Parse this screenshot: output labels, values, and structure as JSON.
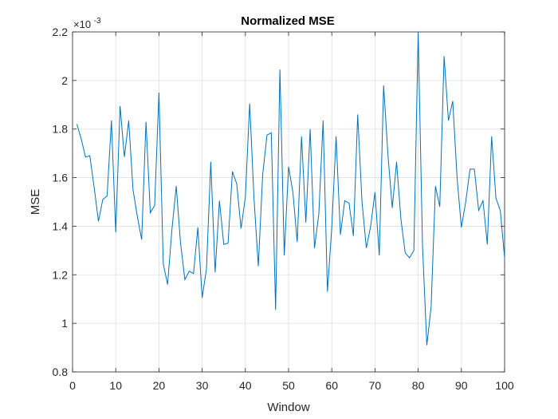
{
  "chart_data": {
    "type": "line",
    "title": "Normalized MSE",
    "xlabel": "Window",
    "ylabel": "MSE",
    "exponent_label": "×10",
    "exponent_power": "-3",
    "xlim": [
      0,
      100
    ],
    "ylim": [
      0.8,
      2.2
    ],
    "xticks": [
      "0",
      "10",
      "20",
      "30",
      "40",
      "50",
      "60",
      "70",
      "80",
      "90",
      "100"
    ],
    "yticks": [
      "0.8",
      "1",
      "1.2",
      "1.4",
      "1.6",
      "1.8",
      "2",
      "2.2"
    ],
    "grid": true,
    "series_color": "#0072BD",
    "x": [
      1,
      2,
      3,
      4,
      5,
      6,
      7,
      8,
      9,
      10,
      11,
      12,
      13,
      14,
      15,
      16,
      17,
      18,
      19,
      20,
      21,
      22,
      23,
      24,
      25,
      26,
      27,
      28,
      29,
      30,
      31,
      32,
      33,
      34,
      35,
      36,
      37,
      38,
      39,
      40,
      41,
      42,
      43,
      44,
      45,
      46,
      47,
      48,
      49,
      50,
      51,
      52,
      53,
      54,
      55,
      56,
      57,
      58,
      59,
      60,
      61,
      62,
      63,
      64,
      65,
      66,
      67,
      68,
      69,
      70,
      71,
      72,
      73,
      74,
      75,
      76,
      77,
      78,
      79,
      80,
      81,
      82,
      83,
      84,
      85,
      86,
      87,
      88,
      89,
      90,
      91,
      92,
      93,
      94,
      95,
      96,
      97,
      98,
      99,
      100
    ],
    "y": [
      1.82,
      1.76,
      1.685,
      1.69,
      1.56,
      1.42,
      1.51,
      1.525,
      1.835,
      1.375,
      1.895,
      1.685,
      1.835,
      1.55,
      1.44,
      1.345,
      1.83,
      1.455,
      1.485,
      1.95,
      1.245,
      1.16,
      1.385,
      1.565,
      1.33,
      1.18,
      1.215,
      1.205,
      1.395,
      1.105,
      1.225,
      1.665,
      1.21,
      1.505,
      1.325,
      1.33,
      1.625,
      1.575,
      1.39,
      1.52,
      1.905,
      1.515,
      1.235,
      1.61,
      1.775,
      1.785,
      1.055,
      2.045,
      1.28,
      1.645,
      1.54,
      1.335,
      1.77,
      1.415,
      1.8,
      1.31,
      1.45,
      1.835,
      1.13,
      1.395,
      1.77,
      1.365,
      1.505,
      1.495,
      1.36,
      1.86,
      1.5,
      1.31,
      1.4,
      1.54,
      1.28,
      1.98,
      1.695,
      1.475,
      1.665,
      1.43,
      1.29,
      1.27,
      1.3,
      2.2,
      1.32,
      0.91,
      1.07,
      1.565,
      1.48,
      2.1,
      1.835,
      1.915,
      1.6,
      1.395,
      1.5,
      1.635,
      1.635,
      1.465,
      1.505,
      1.325,
      1.77,
      1.515,
      1.465,
      1.27
    ]
  }
}
